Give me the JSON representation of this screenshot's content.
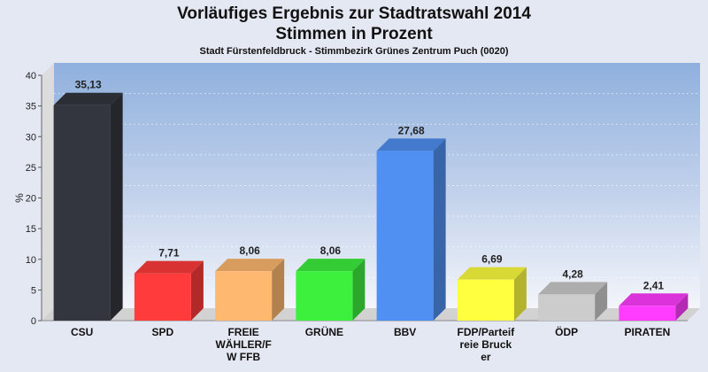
{
  "title_line1": "Vorläufiges Ergebnis zur Stadtratswahl 2014",
  "title_line2": "Stimmen in Prozent",
  "subtitle": "Stadt Fürstenfeldbruck - Stimmbezirk Grünes Zentrum Puch (0020)",
  "chart_data": {
    "type": "bar",
    "title": "Vorläufiges Ergebnis zur Stadtratswahl 2014 Stimmen in Prozent",
    "subtitle": "Stadt Fürstenfeldbruck - Stimmbezirk Grünes Zentrum Puch (0020)",
    "xlabel": "",
    "ylabel": "%",
    "ylim": [
      0,
      40
    ],
    "yticks": [
      0,
      5,
      10,
      15,
      20,
      25,
      30,
      35,
      40
    ],
    "grid": true,
    "categories": [
      "CSU",
      "SPD",
      "FREIE WÄHLER/FW FFB",
      "GRÜNE",
      "BBV",
      "FDP/Parteifreie Bruck er",
      "ÖDP",
      "PIRATEN"
    ],
    "category_lines": [
      [
        "CSU"
      ],
      [
        "SPD"
      ],
      [
        "FREIE",
        "WÄHLER/F",
        "W FFB"
      ],
      [
        "GRÜNE"
      ],
      [
        "BBV"
      ],
      [
        "FDP/Parteif",
        "reie Bruck",
        "er"
      ],
      [
        "ÖDP"
      ],
      [
        "PIRATEN"
      ]
    ],
    "values": [
      35.13,
      7.71,
      8.06,
      8.06,
      27.68,
      6.69,
      4.28,
      2.41
    ],
    "value_labels": [
      "35,13",
      "7,71",
      "8,06",
      "8,06",
      "27,68",
      "6,69",
      "4,28",
      "2,41"
    ],
    "colors": [
      "#33363e",
      "#ff3b3b",
      "#ffb870",
      "#3df03d",
      "#5090f2",
      "#ffff40",
      "#cccccc",
      "#ff3cff"
    ]
  }
}
